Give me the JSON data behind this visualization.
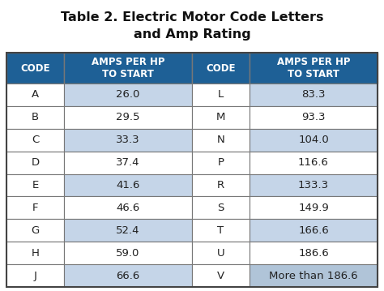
{
  "title_line1": "Table 2. Electric Motor Code Letters",
  "title_line2": "and Amp Rating",
  "title_fontsize": 11.5,
  "header_bg": "#1E6096",
  "header_text_color": "#FFFFFF",
  "odd_row_bg": "#C5D5E8",
  "even_row_bg": "#FFFFFF",
  "last_row_right_bg": "#B0C4D8",
  "border_color": "#777777",
  "col1_header": "CODE",
  "col2_header": "AMPS PER HP\nTO START",
  "col3_header": "CODE",
  "col4_header": "AMPS PER HP\nTO START",
  "left_codes": [
    "A",
    "B",
    "C",
    "D",
    "E",
    "F",
    "G",
    "H",
    "J"
  ],
  "left_amps": [
    "26.0",
    "29.5",
    "33.3",
    "37.4",
    "41.6",
    "46.6",
    "52.4",
    "59.0",
    "66.6"
  ],
  "right_codes": [
    "L",
    "M",
    "N",
    "P",
    "R",
    "S",
    "T",
    "U",
    "V"
  ],
  "right_amps": [
    "83.3",
    "93.3",
    "104.0",
    "116.6",
    "133.3",
    "149.9",
    "166.6",
    "186.6",
    "More than 186.6"
  ],
  "fig_bg": "#FFFFFF",
  "text_color": "#222222",
  "body_fontsize": 9.5,
  "header_fontsize": 8.5,
  "title_color": "#111111"
}
